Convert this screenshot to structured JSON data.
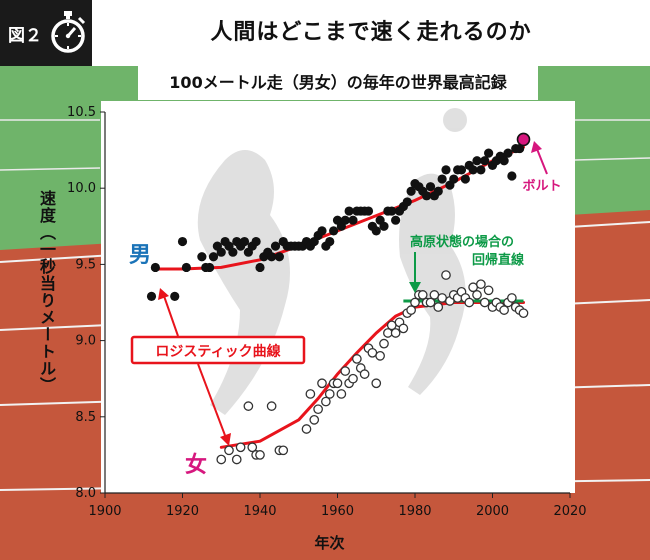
{
  "header": {
    "figure_label": "図２",
    "title": "人間はどこまで速く走れるのか",
    "icon": "stopwatch-icon"
  },
  "chart_data": {
    "type": "scatter",
    "title": "100メートル走（男女）の毎年の世界最高記録",
    "xlabel": "年次",
    "ylabel": "速度（一秒当りメートル）",
    "xlim": [
      1900,
      2020
    ],
    "ylim": [
      8.0,
      10.5
    ],
    "xticks": [
      "1900",
      "1920",
      "1940",
      "1960",
      "1980",
      "2000",
      "2020"
    ],
    "yticks": [
      "8.0",
      "8.5",
      "9.0",
      "9.5",
      "10.0",
      "10.5"
    ],
    "colors": {
      "men_fit": "#e8141c",
      "women_fit": "#e8141c",
      "regression": "#0d9a47",
      "bolt": "#d6177e",
      "men_label": "#1a73b8",
      "women_label": "#d6177e"
    },
    "series": [
      {
        "name": "男",
        "marker": "filled",
        "points": [
          [
            1912,
            9.29
          ],
          [
            1913,
            9.48
          ],
          [
            1918,
            9.29
          ],
          [
            1920,
            9.65
          ],
          [
            1921,
            9.48
          ],
          [
            1925,
            9.55
          ],
          [
            1926,
            9.48
          ],
          [
            1927,
            9.48
          ],
          [
            1928,
            9.55
          ],
          [
            1929,
            9.62
          ],
          [
            1930,
            9.58
          ],
          [
            1931,
            9.65
          ],
          [
            1932,
            9.62
          ],
          [
            1933,
            9.58
          ],
          [
            1934,
            9.65
          ],
          [
            1935,
            9.62
          ],
          [
            1936,
            9.65
          ],
          [
            1937,
            9.58
          ],
          [
            1938,
            9.62
          ],
          [
            1939,
            9.65
          ],
          [
            1940,
            9.48
          ],
          [
            1941,
            9.55
          ],
          [
            1942,
            9.58
          ],
          [
            1943,
            9.55
          ],
          [
            1944,
            9.62
          ],
          [
            1945,
            9.55
          ],
          [
            1946,
            9.65
          ],
          [
            1947,
            9.62
          ],
          [
            1948,
            9.62
          ],
          [
            1949,
            9.62
          ],
          [
            1950,
            9.62
          ],
          [
            1951,
            9.62
          ],
          [
            1952,
            9.65
          ],
          [
            1953,
            9.62
          ],
          [
            1954,
            9.65
          ],
          [
            1955,
            9.69
          ],
          [
            1956,
            9.72
          ],
          [
            1957,
            9.62
          ],
          [
            1958,
            9.65
          ],
          [
            1959,
            9.72
          ],
          [
            1960,
            9.79
          ],
          [
            1961,
            9.75
          ],
          [
            1962,
            9.79
          ],
          [
            1963,
            9.85
          ],
          [
            1964,
            9.79
          ],
          [
            1965,
            9.85
          ],
          [
            1966,
            9.85
          ],
          [
            1967,
            9.85
          ],
          [
            1968,
            9.85
          ],
          [
            1969,
            9.75
          ],
          [
            1970,
            9.72
          ],
          [
            1971,
            9.79
          ],
          [
            1972,
            9.75
          ],
          [
            1973,
            9.85
          ],
          [
            1974,
            9.85
          ],
          [
            1975,
            9.79
          ],
          [
            1976,
            9.85
          ],
          [
            1977,
            9.88
          ],
          [
            1978,
            9.91
          ],
          [
            1979,
            9.98
          ],
          [
            1980,
            10.03
          ],
          [
            1981,
            10.01
          ],
          [
            1982,
            9.98
          ],
          [
            1983,
            9.95
          ],
          [
            1984,
            10.01
          ],
          [
            1985,
            9.95
          ],
          [
            1986,
            9.98
          ],
          [
            1987,
            10.06
          ],
          [
            1988,
            10.12
          ],
          [
            1989,
            10.02
          ],
          [
            1990,
            10.06
          ],
          [
            1991,
            10.12
          ],
          [
            1992,
            10.12
          ],
          [
            1993,
            10.06
          ],
          [
            1994,
            10.15
          ],
          [
            1995,
            10.12
          ],
          [
            1996,
            10.18
          ],
          [
            1997,
            10.12
          ],
          [
            1998,
            10.18
          ],
          [
            1999,
            10.23
          ],
          [
            2000,
            10.15
          ],
          [
            2001,
            10.18
          ],
          [
            2002,
            10.21
          ],
          [
            2003,
            10.18
          ],
          [
            2004,
            10.23
          ],
          [
            2005,
            10.08
          ],
          [
            2006,
            10.26
          ],
          [
            2007,
            10.26
          ]
        ]
      },
      {
        "name": "女",
        "marker": "hollow",
        "points": [
          [
            1930,
            8.22
          ],
          [
            1932,
            8.28
          ],
          [
            1934,
            8.22
          ],
          [
            1935,
            8.3
          ],
          [
            1937,
            8.57
          ],
          [
            1938,
            8.3
          ],
          [
            1939,
            8.25
          ],
          [
            1940,
            8.25
          ],
          [
            1943,
            8.57
          ],
          [
            1945,
            8.28
          ],
          [
            1946,
            8.28
          ],
          [
            1952,
            8.42
          ],
          [
            1953,
            8.65
          ],
          [
            1954,
            8.48
          ],
          [
            1955,
            8.55
          ],
          [
            1956,
            8.72
          ],
          [
            1957,
            8.6
          ],
          [
            1958,
            8.65
          ],
          [
            1959,
            8.72
          ],
          [
            1960,
            8.72
          ],
          [
            1961,
            8.65
          ],
          [
            1962,
            8.8
          ],
          [
            1963,
            8.72
          ],
          [
            1964,
            8.75
          ],
          [
            1965,
            8.88
          ],
          [
            1966,
            8.82
          ],
          [
            1967,
            8.78
          ],
          [
            1968,
            8.95
          ],
          [
            1969,
            8.92
          ],
          [
            1970,
            8.72
          ],
          [
            1971,
            8.9
          ],
          [
            1972,
            8.98
          ],
          [
            1973,
            9.05
          ],
          [
            1974,
            9.1
          ],
          [
            1975,
            9.05
          ],
          [
            1976,
            9.12
          ],
          [
            1977,
            9.08
          ],
          [
            1978,
            9.18
          ],
          [
            1979,
            9.2
          ],
          [
            1980,
            9.25
          ],
          [
            1981,
            9.3
          ],
          [
            1982,
            9.3
          ],
          [
            1983,
            9.25
          ],
          [
            1984,
            9.25
          ],
          [
            1985,
            9.3
          ],
          [
            1986,
            9.22
          ],
          [
            1987,
            9.28
          ],
          [
            1988,
            9.43
          ],
          [
            1989,
            9.26
          ],
          [
            1990,
            9.3
          ],
          [
            1991,
            9.28
          ],
          [
            1992,
            9.32
          ],
          [
            1993,
            9.28
          ],
          [
            1994,
            9.25
          ],
          [
            1995,
            9.35
          ],
          [
            1996,
            9.3
          ],
          [
            1997,
            9.37
          ],
          [
            1998,
            9.25
          ],
          [
            1999,
            9.33
          ],
          [
            2000,
            9.22
          ],
          [
            2001,
            9.25
          ],
          [
            2002,
            9.22
          ],
          [
            2003,
            9.2
          ],
          [
            2004,
            9.25
          ],
          [
            2005,
            9.28
          ],
          [
            2006,
            9.22
          ],
          [
            2007,
            9.2
          ],
          [
            2008,
            9.18
          ]
        ]
      },
      {
        "name": "ボルト",
        "marker": "highlight",
        "points": [
          [
            2008,
            10.32
          ]
        ]
      }
    ],
    "curves": [
      {
        "label": "ロジスティック曲線",
        "points": [
          [
            1913,
            9.47
          ],
          [
            1920,
            9.47
          ],
          [
            1930,
            9.48
          ],
          [
            1940,
            9.53
          ],
          [
            1950,
            9.62
          ],
          [
            1960,
            9.72
          ],
          [
            1970,
            9.82
          ],
          [
            1980,
            9.92
          ],
          [
            1990,
            10.04
          ],
          [
            2000,
            10.18
          ],
          [
            2008,
            10.27
          ]
        ]
      },
      {
        "label": "ロジスティック曲線",
        "points": [
          [
            1930,
            8.3
          ],
          [
            1940,
            8.34
          ],
          [
            1950,
            8.48
          ],
          [
            1955,
            8.62
          ],
          [
            1960,
            8.78
          ],
          [
            1965,
            8.92
          ],
          [
            1970,
            9.05
          ],
          [
            1975,
            9.16
          ],
          [
            1980,
            9.22
          ],
          [
            1990,
            9.25
          ],
          [
            2008,
            9.25
          ]
        ]
      }
    ],
    "regression": {
      "label": "高原状態の場合の回帰直線",
      "x": [
        1977,
        2008
      ],
      "y": 9.26
    },
    "annotations": {
      "men_label": "男",
      "women_label": "女",
      "logistic": "ロジスティック曲線",
      "regression_line1": "高原状態の場合の",
      "regression_line2": "回帰直線",
      "bolt": "ボルト"
    }
  }
}
